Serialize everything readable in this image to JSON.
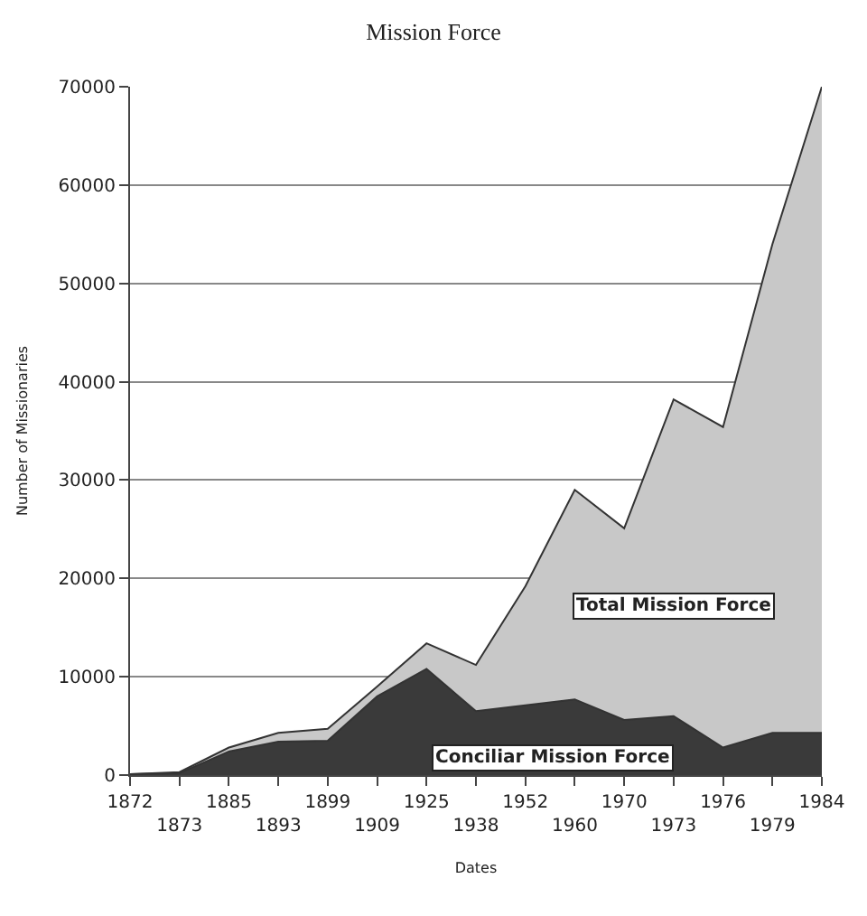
{
  "chart_data": {
    "type": "area",
    "title": "Mission Force",
    "xlabel": "Dates",
    "ylabel": "Number of Missionaries",
    "categories": [
      "1872",
      "1873",
      "1885",
      "1893",
      "1899",
      "1909",
      "1925",
      "1938",
      "1952",
      "1960",
      "1970",
      "1973",
      "1976",
      "1979",
      "1984"
    ],
    "series": [
      {
        "name": "Total Mission Force",
        "color": "#c8c8c8",
        "values": [
          100,
          300,
          2800,
          4300,
          4700,
          9000,
          13400,
          11200,
          19200,
          29000,
          25100,
          38200,
          35400,
          54000,
          70000
        ]
      },
      {
        "name": "Conciliar Mission Force",
        "color": "#3a3a3a",
        "values": [
          100,
          200,
          2400,
          3400,
          3500,
          8000,
          10800,
          6500,
          7100,
          7700,
          5600,
          6000,
          2800,
          4300,
          4300
        ]
      }
    ],
    "ylim": [
      0,
      70000
    ],
    "yticks": [
      0,
      10000,
      20000,
      30000,
      40000,
      50000,
      60000,
      70000
    ],
    "grid": "y",
    "legend": false
  }
}
